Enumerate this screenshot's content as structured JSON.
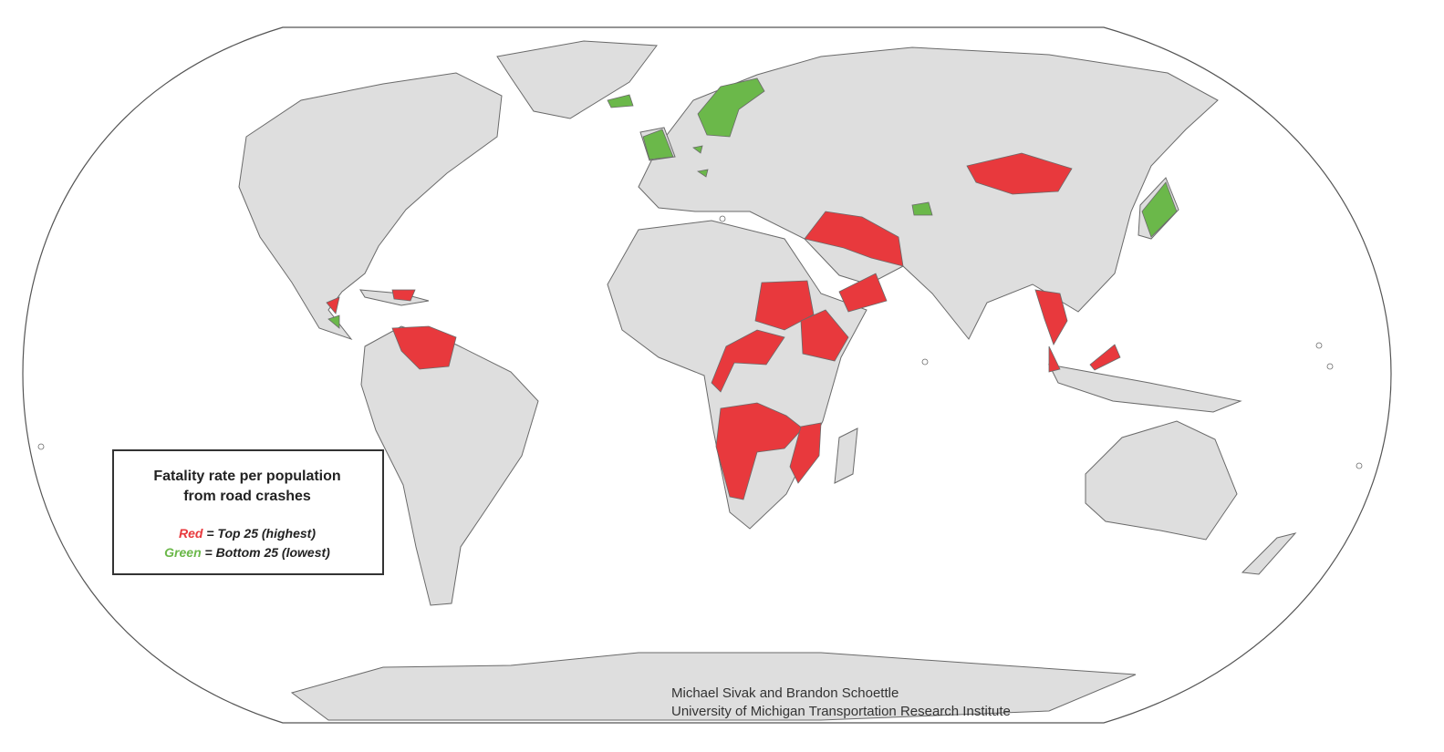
{
  "legend": {
    "title": [
      "Fatality rate per population",
      "from road crashes"
    ],
    "items": [
      {
        "word": "Red",
        "text": "= Top 25 (highest)",
        "color": "#e8393d"
      },
      {
        "word": "Green",
        "text": "= Bottom 25 (lowest)",
        "color": "#6bb84a"
      }
    ]
  },
  "credits": [
    "Michael Sivak and Brandon Schoettle",
    "University of Michigan Transportation Research Institute"
  ]
}
